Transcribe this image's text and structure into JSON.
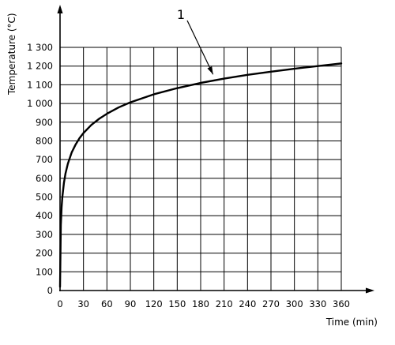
{
  "chart_data": {
    "type": "line",
    "title": "",
    "xlabel": "Time (min)",
    "ylabel": "Temperature (°C)",
    "xlim": [
      0,
      360
    ],
    "ylim": [
      0,
      1300
    ],
    "xticks": [
      0,
      30,
      60,
      90,
      120,
      150,
      180,
      210,
      240,
      270,
      300,
      330,
      360
    ],
    "yticks": [
      0,
      100,
      200,
      300,
      400,
      500,
      600,
      700,
      800,
      900,
      1000,
      1100,
      1200,
      1300
    ],
    "xtick_labels": [
      "0",
      "30",
      "60",
      "90",
      "120",
      "150",
      "180",
      "210",
      "240",
      "270",
      "300",
      "330",
      "360"
    ],
    "ytick_labels": [
      "0",
      "100",
      "200",
      "300",
      "400",
      "500",
      "600",
      "700",
      "800",
      "900",
      "1 000",
      "1 100",
      "1 200",
      "1 300"
    ],
    "grid": true,
    "annotation": {
      "text": "1",
      "target_x": 210,
      "target_y": 1130
    },
    "series": [
      {
        "x": [
          0,
          1,
          2,
          3,
          5,
          7,
          10,
          15,
          20,
          25,
          30,
          40,
          50,
          60,
          75,
          90,
          120,
          150,
          180,
          210,
          240,
          270,
          300,
          330,
          360
        ],
        "y": [
          20,
          349,
          445,
          502,
          576,
          626,
          678,
          739,
          781,
          815,
          842,
          885,
          918,
          945,
          979,
          1006,
          1049,
          1082,
          1110,
          1133,
          1153,
          1170,
          1186,
          1200,
          1214
        ]
      }
    ]
  }
}
